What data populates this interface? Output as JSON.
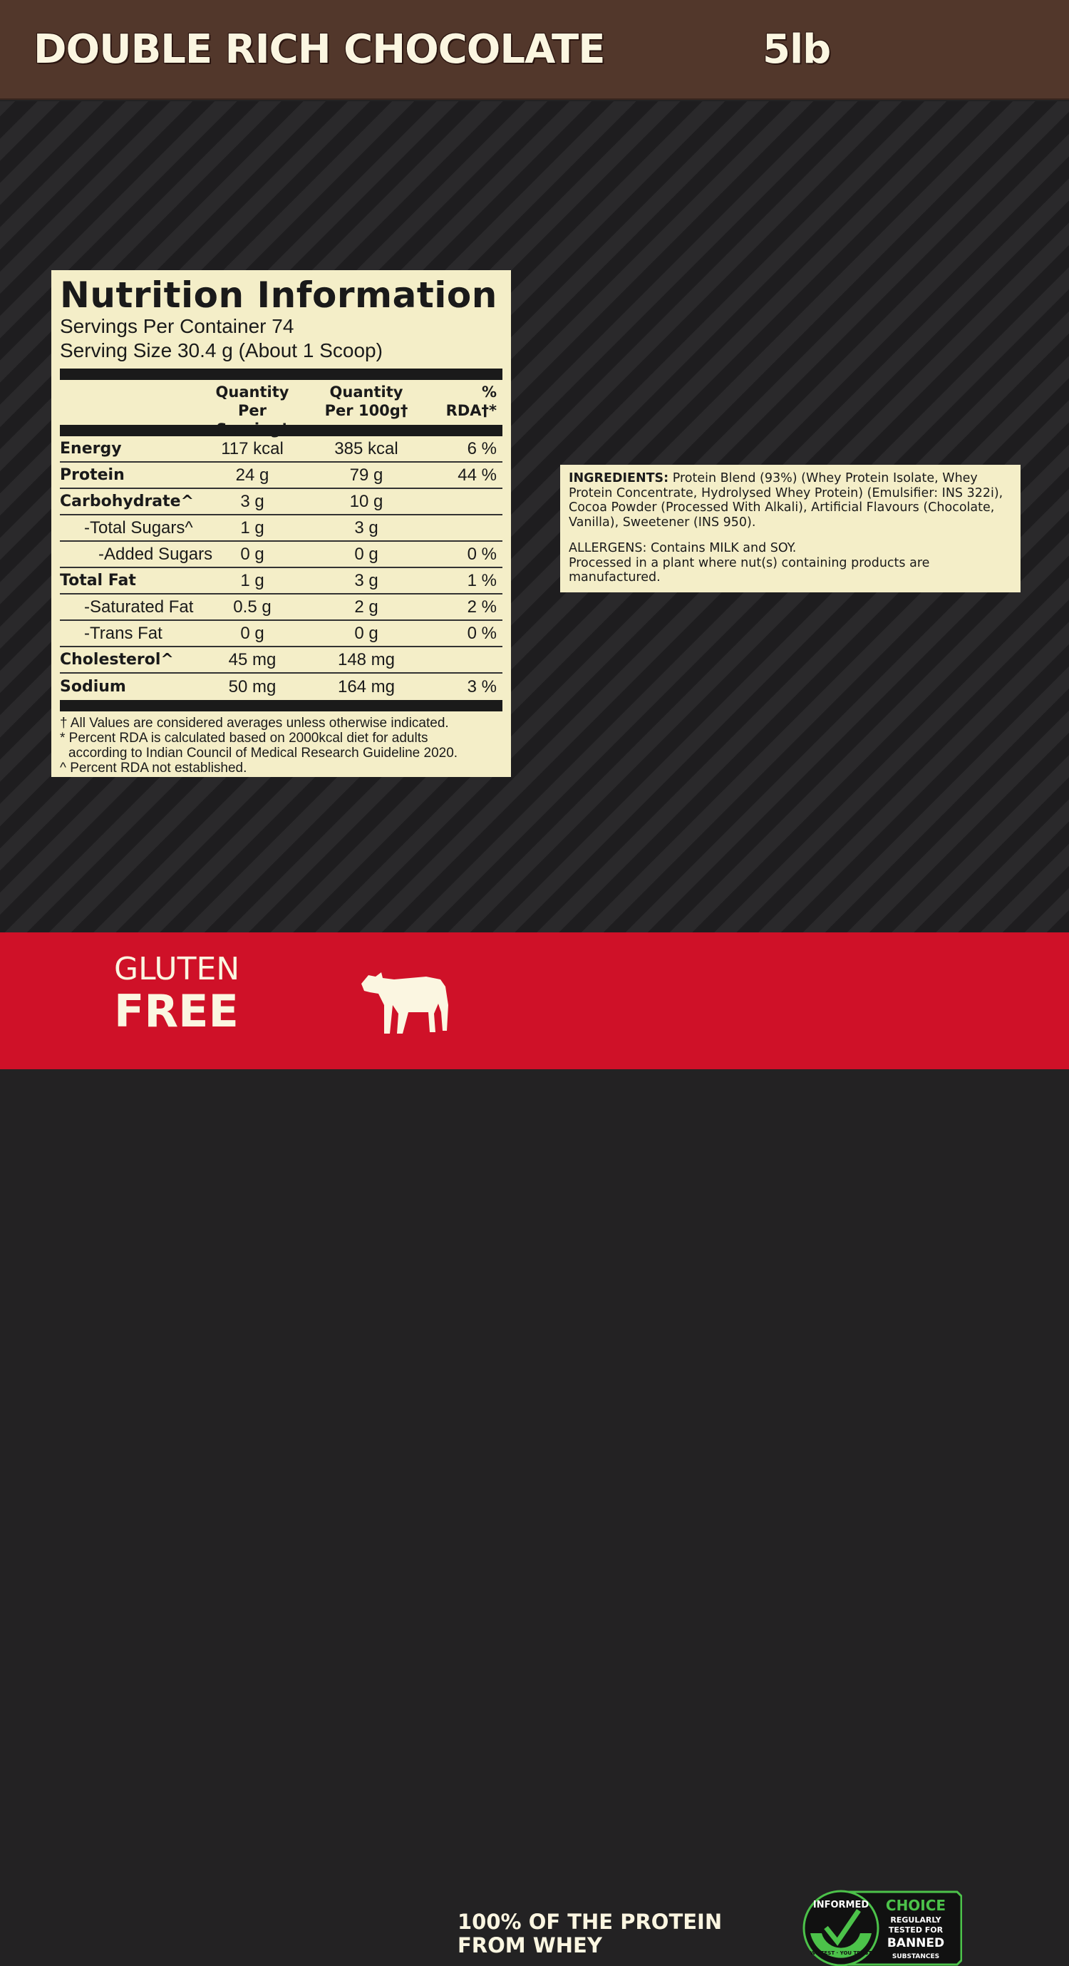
{
  "header": {
    "title": "DOUBLE RICH CHOCOLATE",
    "size": "5lb"
  },
  "nutrition": {
    "title": "Nutrition Information",
    "servings": "Servings Per Container 74",
    "serving_size": "Serving Size 30.4 g (About 1 Scoop)",
    "columns": [
      "Quantity\nPer Serving†",
      "Quantity\nPer 100g†",
      "% RDA†*"
    ],
    "col1a": "Quantity",
    "col1b": "Per Serving†",
    "col2a": "Quantity",
    "col2b": "Per 100g†",
    "col3": "% RDA†*",
    "rows": [
      {
        "name": "Energy",
        "serving": "117 kcal",
        "per100": "385 kcal",
        "rda": "6 %"
      },
      {
        "name": "Protein",
        "serving": "24 g",
        "per100": "79 g",
        "rda": "44 %"
      },
      {
        "name": "Carbohydrate^",
        "serving": "3 g",
        "per100": "10 g",
        "rda": ""
      },
      {
        "name": "-Total Sugars^",
        "serving": "1 g",
        "per100": "3 g",
        "rda": ""
      },
      {
        "name": "-Added Sugars",
        "serving": "0 g",
        "per100": "0 g",
        "rda": "0 %"
      },
      {
        "name": "Total Fat",
        "serving": "1 g",
        "per100": "3 g",
        "rda": "1 %"
      },
      {
        "name": "-Saturated Fat",
        "serving": "0.5 g",
        "per100": "2 g",
        "rda": "2 %"
      },
      {
        "name": "-Trans Fat",
        "serving": "0 g",
        "per100": "0 g",
        "rda": "0 %"
      },
      {
        "name": "Cholesterol^",
        "serving": "45 mg",
        "per100": "148 mg",
        "rda": ""
      },
      {
        "name": "Sodium",
        "serving": "50 mg",
        "per100": "164 mg",
        "rda": "3 %"
      }
    ],
    "footnotes": [
      "† All Values are considered averages unless otherwise indicated.",
      "* Percent RDA is calculated based on 2000kcal diet for adults",
      "according to Indian Council of Medical Research Guideline 2020.",
      "^ Percent RDA not established."
    ]
  },
  "ingredients": {
    "label": "INGREDIENTS:",
    "text": "Protein Blend (93%) (Whey Protein Isolate, Whey Protein Concentrate, Hydrolysed Whey Protein) (Emulsifier: INS 322i), Cocoa Powder (Processed With Alkali), Artificial Flavours (Chocolate, Vanilla), Sweetener (INS 950).",
    "allergens": "ALLERGENS: Contains MILK and SOY.",
    "processed": "Processed in a plant where nut(s) containing products are manufactured."
  },
  "footer": {
    "gluten1": "GLUTEN",
    "gluten2": "FREE",
    "protein1": "100% OF THE PROTEIN",
    "protein2": "FROM WHEY",
    "badge": {
      "arc_top": "INFORMED",
      "arc_bottom": "WE TEST · YOU TRUST",
      "choice": "CHOICE",
      "l1": "REGULARLY",
      "l2": "TESTED FOR",
      "l3": "BANNED",
      "l4": "SUBSTANCES"
    }
  },
  "colors": {
    "header": "#52372b",
    "panel": "#f4eec8",
    "band": "#cf1128",
    "badge_green": "#4cc24a"
  }
}
